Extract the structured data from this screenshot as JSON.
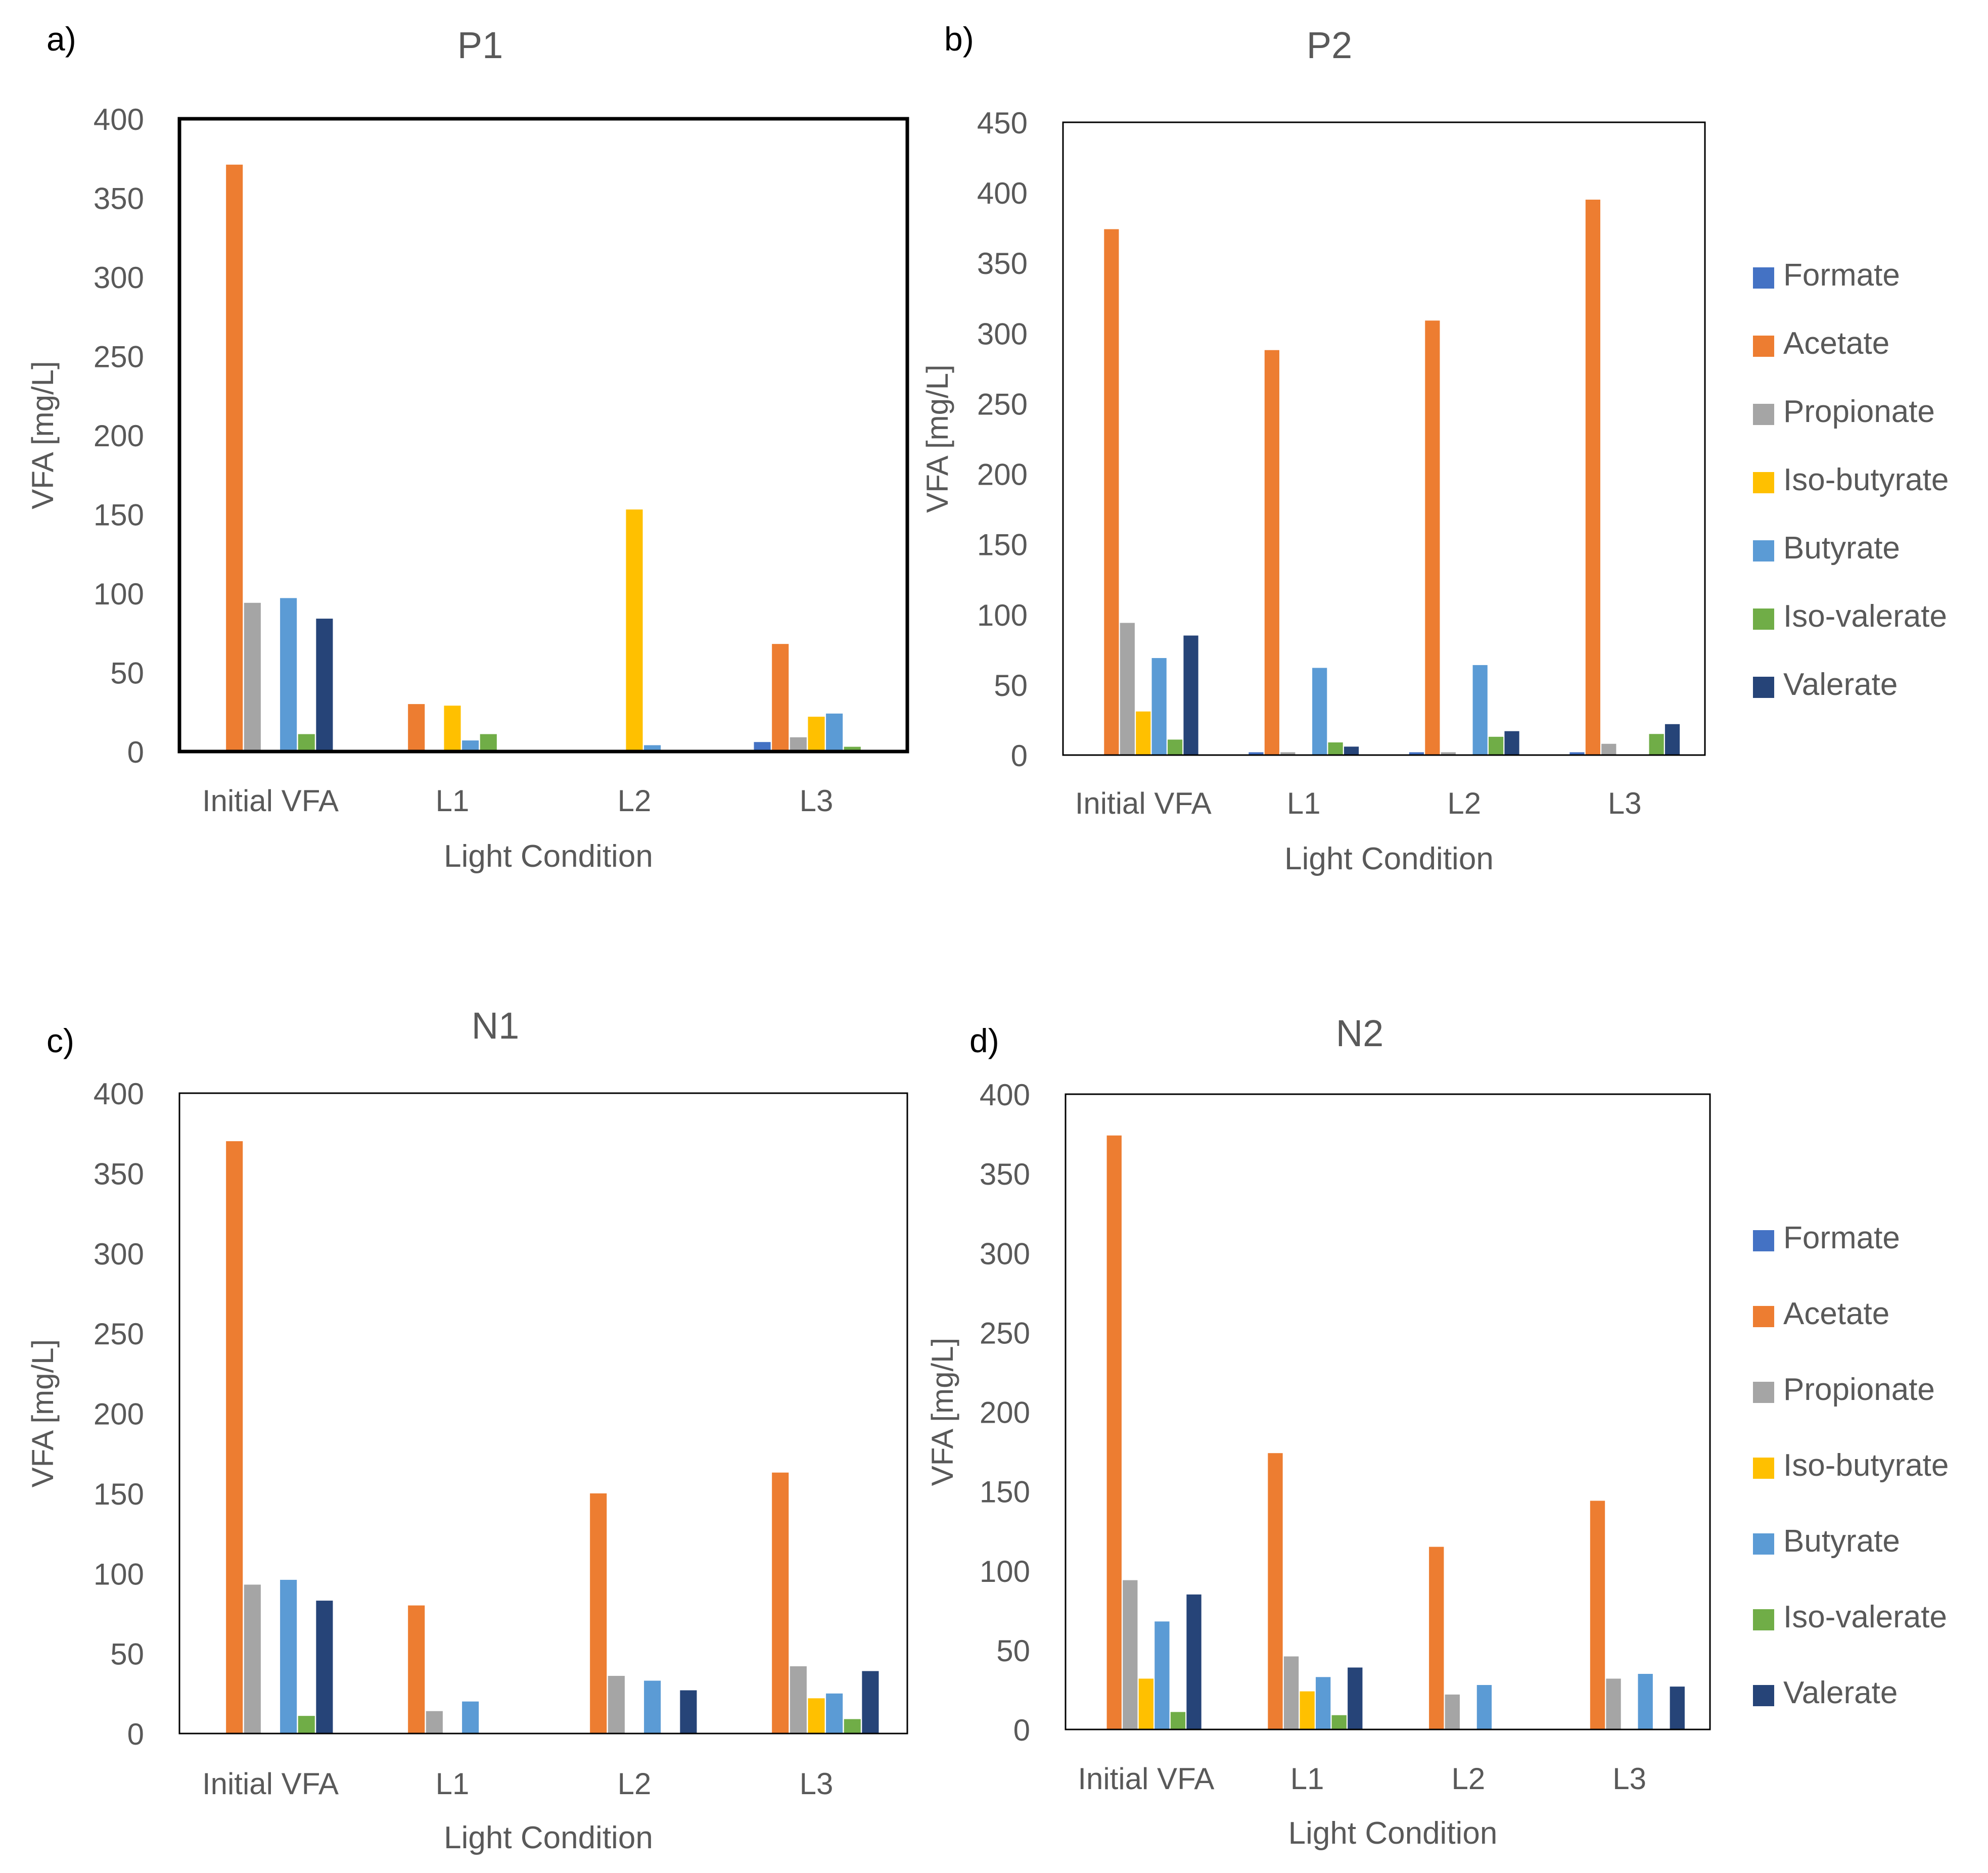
{
  "figure": {
    "colors": {
      "Formate": "#4472C4",
      "Acetate": "#ED7D31",
      "Propionate": "#A5A5A5",
      "Iso-butyrate": "#FFC000",
      "Butyrate": "#5B9BD5",
      "Iso-valerate": "#70AD47",
      "Valerate": "#264478"
    }
  },
  "chart_data": [
    {
      "type": "bar",
      "panel_label": "a)",
      "title": "P1",
      "xlabel": "Light Condition",
      "ylabel": "VFA [mg/L]",
      "ylim": [
        0,
        400
      ],
      "yticks": [
        "0",
        "50",
        "100",
        "150",
        "200",
        "250",
        "300",
        "350",
        "400"
      ],
      "categories": [
        "Initial VFA",
        "L1",
        "L2",
        "L3"
      ],
      "legend": false,
      "series": [
        {
          "name": "Formate",
          "values": [
            0,
            1,
            1,
            6
          ]
        },
        {
          "name": "Acetate",
          "values": [
            371,
            30,
            1,
            68
          ]
        },
        {
          "name": "Propionate",
          "values": [
            94,
            0,
            0,
            9
          ]
        },
        {
          "name": "Iso-butyrate",
          "values": [
            0,
            29,
            153,
            22
          ]
        },
        {
          "name": "Butyrate",
          "values": [
            97,
            7,
            4,
            24
          ]
        },
        {
          "name": "Iso-valerate",
          "values": [
            11,
            11,
            0,
            3
          ]
        },
        {
          "name": "Valerate",
          "values": [
            84,
            0,
            0,
            0
          ]
        }
      ]
    },
    {
      "type": "bar",
      "panel_label": "b)",
      "title": "P2",
      "xlabel": "Light Condition",
      "ylabel": "VFA [mg/L]",
      "ylim": [
        0,
        450
      ],
      "yticks": [
        "0",
        "50",
        "100",
        "150",
        "200",
        "250",
        "300",
        "350",
        "400",
        "450"
      ],
      "categories": [
        "Initial VFA",
        "L1",
        "L2",
        "L3"
      ],
      "legend": true,
      "legend_position": "right",
      "series": [
        {
          "name": "Formate",
          "values": [
            0,
            2,
            2,
            2
          ]
        },
        {
          "name": "Acetate",
          "values": [
            374,
            288,
            309,
            395
          ]
        },
        {
          "name": "Propionate",
          "values": [
            94,
            2,
            2,
            8
          ]
        },
        {
          "name": "Iso-butyrate",
          "values": [
            31,
            0,
            0,
            0
          ]
        },
        {
          "name": "Butyrate",
          "values": [
            69,
            62,
            64,
            0
          ]
        },
        {
          "name": "Iso-valerate",
          "values": [
            11,
            9,
            13,
            15
          ]
        },
        {
          "name": "Valerate",
          "values": [
            85,
            6,
            17,
            22
          ]
        }
      ]
    },
    {
      "type": "bar",
      "panel_label": "c)",
      "title": "N1",
      "xlabel": "Light Condition",
      "ylabel": "VFA [mg/L]",
      "ylim": [
        0,
        400
      ],
      "yticks": [
        "0",
        "50",
        "100",
        "150",
        "200",
        "250",
        "300",
        "350",
        "400"
      ],
      "categories": [
        "Initial VFA",
        "L1",
        "L2",
        "L3"
      ],
      "legend": false,
      "series": [
        {
          "name": "Formate",
          "values": [
            0,
            0,
            0,
            0
          ]
        },
        {
          "name": "Acetate",
          "values": [
            370,
            80,
            150,
            163
          ]
        },
        {
          "name": "Propionate",
          "values": [
            93,
            14,
            36,
            42
          ]
        },
        {
          "name": "Iso-butyrate",
          "values": [
            0,
            0,
            0,
            22
          ]
        },
        {
          "name": "Butyrate",
          "values": [
            96,
            20,
            33,
            25
          ]
        },
        {
          "name": "Iso-valerate",
          "values": [
            11,
            0,
            0,
            9
          ]
        },
        {
          "name": "Valerate",
          "values": [
            83,
            0,
            27,
            39
          ]
        }
      ]
    },
    {
      "type": "bar",
      "panel_label": "d)",
      "title": "N2",
      "xlabel": "Light Condition",
      "ylabel": "VFA [mg/L]",
      "ylim": [
        0,
        400
      ],
      "yticks": [
        "0",
        "50",
        "100",
        "150",
        "200",
        "250",
        "300",
        "350",
        "400"
      ],
      "categories": [
        "Initial VFA",
        "L1",
        "L2",
        "L3"
      ],
      "legend": true,
      "legend_position": "right",
      "series": [
        {
          "name": "Formate",
          "values": [
            0,
            0,
            0,
            0
          ]
        },
        {
          "name": "Acetate",
          "values": [
            374,
            174,
            115,
            144
          ]
        },
        {
          "name": "Propionate",
          "values": [
            94,
            46,
            22,
            32
          ]
        },
        {
          "name": "Iso-butyrate",
          "values": [
            32,
            24,
            0,
            0
          ]
        },
        {
          "name": "Butyrate",
          "values": [
            68,
            33,
            28,
            35
          ]
        },
        {
          "name": "Iso-valerate",
          "values": [
            11,
            9,
            0,
            0
          ]
        },
        {
          "name": "Valerate",
          "values": [
            85,
            39,
            0,
            27
          ]
        }
      ]
    }
  ]
}
